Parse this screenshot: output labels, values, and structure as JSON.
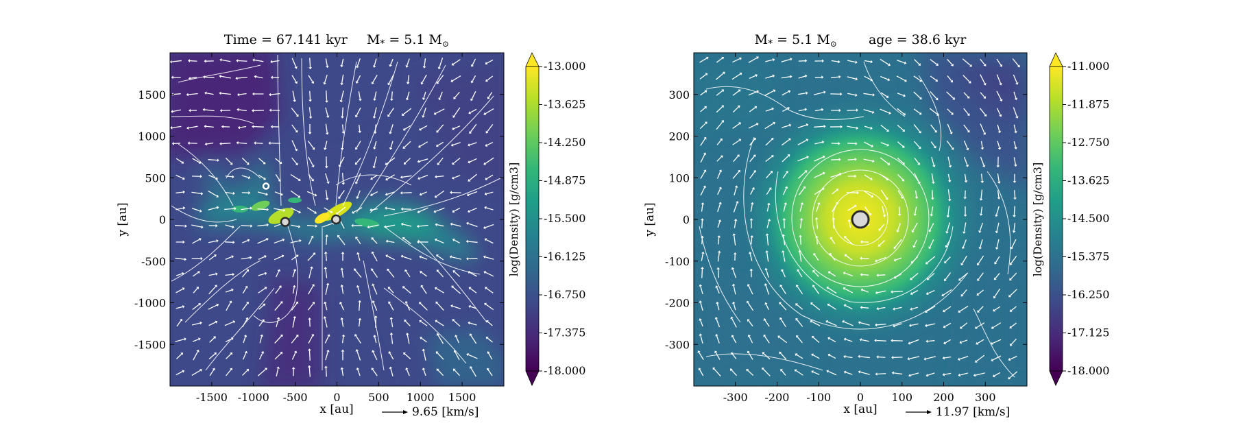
{
  "colors": {
    "viridis": [
      "#440154",
      "#482878",
      "#3e4989",
      "#31688e",
      "#26828e",
      "#1f9e89",
      "#35b779",
      "#6ece58",
      "#b5de2b",
      "#fde725"
    ],
    "stream": "#ffffff",
    "sink_edge": "#2b2b2b"
  },
  "chart_data": [
    {
      "type": "heatmap",
      "title_left": "Time = 67.141 kyr",
      "title_right": "M",
      "title_sub": "*",
      "title_right_tail": " = 5.1 M",
      "title_sun": "⊙",
      "xlabel": "x [au]",
      "ylabel": "y [au]",
      "xlim": [
        -2000,
        2000
      ],
      "ylim": [
        -2000,
        2000
      ],
      "xticks": [
        -1500,
        -1000,
        -500,
        0,
        500,
        1000,
        1500
      ],
      "yticks": [
        1500,
        1000,
        500,
        0,
        -500,
        -1000,
        -1500
      ],
      "grid": false,
      "colorbar": {
        "label": "log(Density) [g/cm3]",
        "range": [
          -18.0,
          -13.0
        ],
        "ticks": [
          "-13.000",
          "-13.625",
          "-14.250",
          "-14.875",
          "-15.500",
          "-16.125",
          "-16.750",
          "-17.375",
          "-18.000"
        ]
      },
      "vector_key": "9.65 [km/s]",
      "sinks": [
        {
          "x": -620,
          "y": -30
        },
        {
          "x": -10,
          "y": 0
        },
        {
          "x": -850,
          "y": 400
        }
      ]
    },
    {
      "type": "heatmap",
      "title_left": "M",
      "title_sub": "*",
      "title_left_tail": " = 5.1 M",
      "title_sun": "⊙",
      "title_right": "age = 38.6 kyr",
      "xlabel": "x [au]",
      "ylabel": "y [au]",
      "xlim": [
        -400,
        400
      ],
      "ylim": [
        -400,
        400
      ],
      "xticks": [
        -300,
        -200,
        -100,
        0,
        100,
        200,
        300
      ],
      "yticks": [
        300,
        200,
        100,
        0,
        -100,
        -200,
        -300
      ],
      "grid": false,
      "colorbar": {
        "label": "log(Density) [g/cm3]",
        "range": [
          -18.0,
          -11.0
        ],
        "ticks": [
          "-11.000",
          "-11.875",
          "-12.750",
          "-13.625",
          "-14.500",
          "-15.375",
          "-16.250",
          "-17.125",
          "-18.000"
        ]
      },
      "vector_key": "11.97 [km/s]",
      "sinks": [
        {
          "x": 0,
          "y": 0
        }
      ]
    }
  ]
}
